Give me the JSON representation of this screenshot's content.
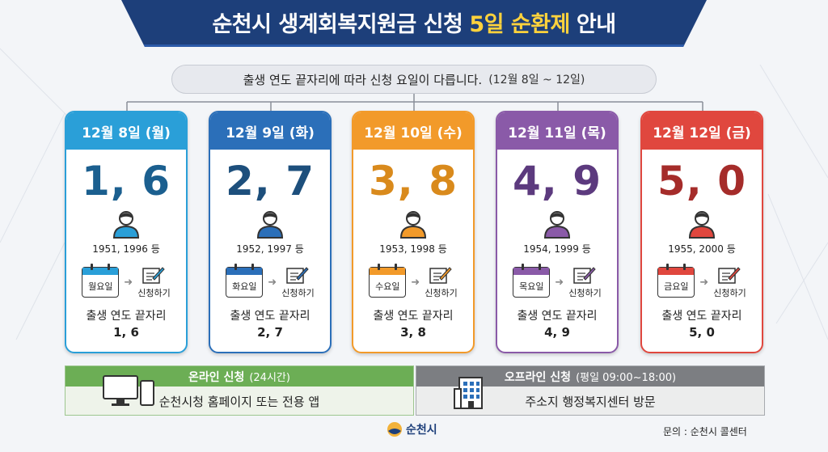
{
  "header": {
    "title_part1": "순천시 생계회복지원금 신청",
    "title_highlight": "5일 순환제",
    "title_part2": "안내"
  },
  "subtitle": {
    "text": "출생 연도 끝자리에 따라 신청 요일이 다릅니다.",
    "date_range": "(12월 8일 ~ 12일)"
  },
  "days": [
    {
      "header": "12월 8일 (월)",
      "digits_big": "1, 6",
      "years": "1951, 1996 등",
      "weekday": "월요일",
      "apply": "신청하기",
      "digits_caption": "출생 연도 끝자리",
      "digits": "1, 6",
      "color": "#2a9fd8",
      "num_color": "#1b5f8f",
      "person_color": "#2a9fd8"
    },
    {
      "header": "12월 9일 (화)",
      "digits_big": "2, 7",
      "years": "1952, 1997 등",
      "weekday": "화요일",
      "apply": "신청하기",
      "digits_caption": "출생 연도 끝자리",
      "digits": "2, 7",
      "color": "#2b6fb9",
      "num_color": "#1d4f7c",
      "person_color": "#2b6fb9"
    },
    {
      "header": "12월 10일 (수)",
      "digits_big": "3, 8",
      "years": "1953, 1998 등",
      "weekday": "수요일",
      "apply": "신청하기",
      "digits_caption": "출생 연도 끝자리",
      "digits": "3, 8",
      "color": "#f29a2a",
      "num_color": "#d98a1c",
      "person_color": "#f29a2a"
    },
    {
      "header": "12월 11일 (목)",
      "digits_big": "4, 9",
      "years": "1954, 1999 등",
      "weekday": "목요일",
      "apply": "신청하기",
      "digits_caption": "출생 연도 끝자리",
      "digits": "4, 9",
      "color": "#8a5aa8",
      "num_color": "#5c3a7e",
      "person_color": "#8a5aa8"
    },
    {
      "header": "12월 12일 (금)",
      "digits_big": "5, 0",
      "years": "1955, 2000 등",
      "weekday": "금요일",
      "apply": "신청하기",
      "digits_caption": "출생 연도 끝자리",
      "digits": "5, 0",
      "color": "#e0473e",
      "num_color": "#a52c2a",
      "person_color": "#e0473e"
    }
  ],
  "online": {
    "title": "온라인 신청",
    "sub": "(24시간)",
    "body": "순천시청 홈페이지 또는 전용 앱",
    "icon": "computer-phone-icon"
  },
  "offline": {
    "title": "오프라인 신청",
    "sub": "(평일 09:00~18:00)",
    "body": "주소지 행정복지센터 방문",
    "icon": "building-icon"
  },
  "footer": {
    "logo_text": "순천시",
    "contact": "문의 : 순천시 콜센터"
  },
  "colors": {
    "banner": "#1d3f7a",
    "highlight": "#ffd23c",
    "online_green": "#6cae55",
    "offline_gray": "#7c7e82"
  }
}
